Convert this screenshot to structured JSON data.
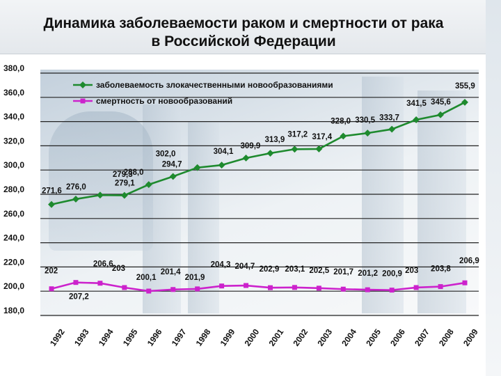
{
  "title": {
    "line1": "Динамика заболеваемости раком и смертности от рака",
    "line2": "в Российской Федерации"
  },
  "colors": {
    "incidence": "#1e8a2e",
    "mortality": "#cc22cc",
    "grid": "#222222"
  },
  "chart_data": {
    "type": "line",
    "x": [
      "1992",
      "1993",
      "1994",
      "1995",
      "1996",
      "1997",
      "1998",
      "1999",
      "2000",
      "2001",
      "2002",
      "2003",
      "2004",
      "2005",
      "2006",
      "2007",
      "2008",
      "2009"
    ],
    "ylim": [
      180,
      380
    ],
    "yticks": [
      "180,0",
      "200,0",
      "220,0",
      "240,0",
      "260,0",
      "280,0",
      "300,0",
      "320,0",
      "340,0",
      "360,0",
      "380,0"
    ],
    "grid": true,
    "legend_position": "top",
    "series": [
      {
        "name": "заболеваемость злокачественными новообразованиями",
        "values": [
          271.6,
          276.0,
          279.3,
          279.1,
          288.0,
          294.7,
          302.0,
          304.1,
          309.9,
          313.9,
          317.2,
          317.4,
          328.0,
          330.5,
          333.7,
          341.5,
          345.6,
          355.9
        ],
        "labels": [
          "271,6",
          "276,0",
          "279,3",
          "279,1",
          "288,0",
          "294,7",
          "302,0",
          "304,1",
          "309,9",
          "313,9",
          "317,2",
          "317,4",
          "328,0",
          "330,5",
          "333,7",
          "341,5",
          "345,6",
          "355,9"
        ]
      },
      {
        "name": "смертность от новообразований",
        "values": [
          202,
          207.2,
          206.6,
          203,
          200.1,
          201.4,
          201.9,
          204.3,
          204.7,
          202.9,
          203.1,
          202.5,
          201.7,
          201.2,
          200.9,
          203,
          203.8,
          206.9
        ],
        "labels": [
          "202",
          "207,2",
          "206,6",
          "203",
          "200,1",
          "201,4",
          "201,9",
          "204,3",
          "204,7",
          "202,9",
          "203,1",
          "202,5",
          "201,7",
          "201,2",
          "200,9",
          "203",
          "203,8",
          "206,9"
        ]
      }
    ]
  }
}
